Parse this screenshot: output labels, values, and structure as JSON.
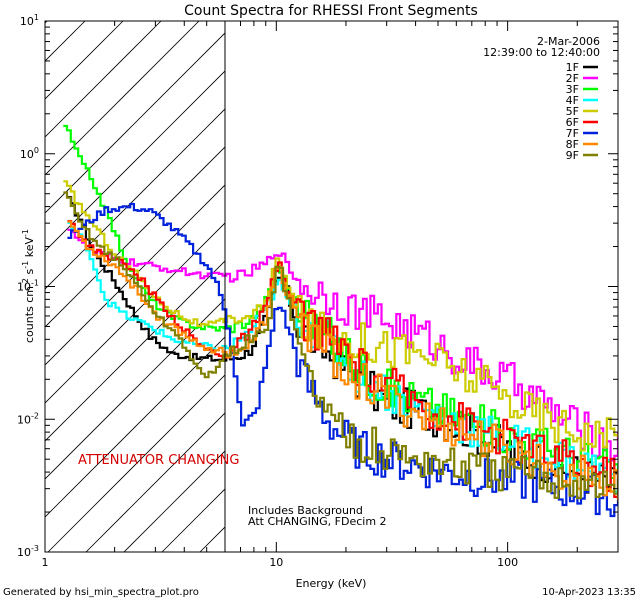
{
  "chart_data": {
    "type": "line",
    "title": "Count Spectra for RHESSI Front Segments",
    "xlabel": "Energy (keV)",
    "ylabel_parts": {
      "base": "counts cm",
      "exp1": "-2",
      "mid": " s",
      "exp2": "-1",
      "mid2": " keV",
      "exp3": "-1"
    },
    "xscale": "log",
    "yscale": "log",
    "xlim": [
      1,
      300
    ],
    "ylim": [
      0.001,
      10
    ],
    "x_ticks": [
      {
        "value": 1,
        "label": "1"
      },
      {
        "value": 10,
        "label": "10"
      },
      {
        "value": 100,
        "label": "100"
      }
    ],
    "y_ticks": [
      {
        "value": 10,
        "base": "10",
        "exp": "1"
      },
      {
        "value": 1,
        "base": "10",
        "exp": "0"
      },
      {
        "value": 0.1,
        "base": "10",
        "exp": "-1"
      },
      {
        "value": 0.01,
        "base": "10",
        "exp": "-2"
      },
      {
        "value": 0.001,
        "base": "10",
        "exp": "-3"
      }
    ],
    "date": "2-Mar-2006",
    "time_range": "12:39:00 to 12:40:00",
    "hatched_region": {
      "x_from": 1,
      "x_to": 6
    },
    "vertical_line_x": 6,
    "annotations": {
      "attenuator": "ATTENUATOR CHANGING",
      "background": "Includes Background",
      "att_status": "Att CHANGING, FDecim 2"
    },
    "series": [
      {
        "name": "1F",
        "color": "#000000",
        "anchors": [
          [
            1.25,
            0.45
          ],
          [
            1.4,
            0.32
          ],
          [
            1.6,
            0.18
          ],
          [
            1.9,
            0.12
          ],
          [
            2.3,
            0.07
          ],
          [
            2.8,
            0.042
          ],
          [
            3.5,
            0.031
          ],
          [
            4.5,
            0.029
          ],
          [
            6,
            0.028
          ],
          [
            7.5,
            0.032
          ],
          [
            9,
            0.06
          ],
          [
            10,
            0.12
          ],
          [
            11,
            0.09
          ],
          [
            12,
            0.055
          ],
          [
            14,
            0.04
          ],
          [
            17,
            0.03
          ],
          [
            22,
            0.02
          ],
          [
            30,
            0.013
          ],
          [
            45,
            0.011
          ],
          [
            70,
            0.008
          ],
          [
            110,
            0.0055
          ],
          [
            170,
            0.0043
          ],
          [
            250,
            0.0035
          ],
          [
            300,
            0.003
          ]
        ]
      },
      {
        "name": "2F",
        "color": "#ff00ff",
        "anchors": [
          [
            1.25,
            0.28
          ],
          [
            1.5,
            0.19
          ],
          [
            2,
            0.16
          ],
          [
            3,
            0.14
          ],
          [
            5,
            0.12
          ],
          [
            7,
            0.12
          ],
          [
            9,
            0.15
          ],
          [
            10,
            0.2
          ],
          [
            11,
            0.14
          ],
          [
            13,
            0.1
          ],
          [
            17,
            0.085
          ],
          [
            22,
            0.065
          ],
          [
            30,
            0.055
          ],
          [
            45,
            0.04
          ],
          [
            70,
            0.025
          ],
          [
            110,
            0.018
          ],
          [
            170,
            0.01
          ],
          [
            250,
            0.007
          ],
          [
            300,
            0.006
          ]
        ]
      },
      {
        "name": "3F",
        "color": "#00ff00",
        "anchors": [
          [
            1.2,
            1.65
          ],
          [
            1.4,
            0.9
          ],
          [
            1.6,
            0.6
          ],
          [
            1.9,
            0.3
          ],
          [
            2.3,
            0.13
          ],
          [
            2.8,
            0.08
          ],
          [
            3.5,
            0.058
          ],
          [
            4.5,
            0.05
          ],
          [
            6,
            0.048
          ],
          [
            7.5,
            0.055
          ],
          [
            9,
            0.08
          ],
          [
            10,
            0.15
          ],
          [
            11,
            0.1
          ],
          [
            13,
            0.06
          ],
          [
            17,
            0.04
          ],
          [
            22,
            0.025
          ],
          [
            30,
            0.017
          ],
          [
            45,
            0.013
          ],
          [
            70,
            0.0095
          ],
          [
            110,
            0.0072
          ],
          [
            170,
            0.0058
          ],
          [
            250,
            0.0045
          ],
          [
            300,
            0.0038
          ]
        ]
      },
      {
        "name": "4F",
        "color": "#00ffff",
        "anchors": [
          [
            1.25,
            0.3
          ],
          [
            1.5,
            0.2
          ],
          [
            1.8,
            0.08
          ],
          [
            2.2,
            0.06
          ],
          [
            2.8,
            0.05
          ],
          [
            3.5,
            0.04
          ],
          [
            4.5,
            0.036
          ],
          [
            6,
            0.034
          ],
          [
            7.5,
            0.045
          ],
          [
            9,
            0.07
          ],
          [
            10,
            0.11
          ],
          [
            11,
            0.08
          ],
          [
            13,
            0.055
          ],
          [
            17,
            0.038
          ],
          [
            22,
            0.022
          ],
          [
            30,
            0.016
          ],
          [
            45,
            0.011
          ],
          [
            70,
            0.0085
          ],
          [
            110,
            0.0065
          ],
          [
            170,
            0.005
          ],
          [
            250,
            0.0042
          ],
          [
            300,
            0.0035
          ]
        ]
      },
      {
        "name": "5F",
        "color": "#cccc00",
        "anchors": [
          [
            1.2,
            0.6
          ],
          [
            1.4,
            0.4
          ],
          [
            1.7,
            0.25
          ],
          [
            2,
            0.17
          ],
          [
            2.5,
            0.12
          ],
          [
            3,
            0.08
          ],
          [
            3.8,
            0.06
          ],
          [
            4.8,
            0.05
          ],
          [
            6,
            0.055
          ],
          [
            7.5,
            0.06
          ],
          [
            9,
            0.075
          ],
          [
            10,
            0.18
          ],
          [
            11,
            0.1
          ],
          [
            13,
            0.05
          ],
          [
            17,
            0.045
          ],
          [
            22,
            0.04
          ],
          [
            30,
            0.035
          ],
          [
            45,
            0.03
          ],
          [
            70,
            0.02
          ],
          [
            110,
            0.013
          ],
          [
            170,
            0.009
          ],
          [
            250,
            0.0075
          ],
          [
            300,
            0.007
          ]
        ]
      },
      {
        "name": "6F",
        "color": "#ff0000",
        "anchors": [
          [
            1.25,
            0.33
          ],
          [
            1.5,
            0.2
          ],
          [
            2,
            0.16
          ],
          [
            2.5,
            0.12
          ],
          [
            3,
            0.08
          ],
          [
            3.8,
            0.05
          ],
          [
            4.8,
            0.034
          ],
          [
            6,
            0.03
          ],
          [
            7.5,
            0.045
          ],
          [
            9,
            0.07
          ],
          [
            10,
            0.16
          ],
          [
            11,
            0.09
          ],
          [
            13,
            0.055
          ],
          [
            17,
            0.04
          ],
          [
            22,
            0.025
          ],
          [
            30,
            0.018
          ],
          [
            45,
            0.012
          ],
          [
            70,
            0.009
          ],
          [
            110,
            0.0065
          ],
          [
            170,
            0.005
          ],
          [
            250,
            0.004
          ],
          [
            300,
            0.0035
          ]
        ]
      },
      {
        "name": "7F",
        "color": "#0022dd",
        "anchors": [
          [
            1.25,
            0.24
          ],
          [
            1.5,
            0.3
          ],
          [
            1.8,
            0.38
          ],
          [
            2.3,
            0.4
          ],
          [
            2.8,
            0.37
          ],
          [
            3.3,
            0.3
          ],
          [
            4,
            0.22
          ],
          [
            5,
            0.14
          ],
          [
            5.5,
            0.1
          ],
          [
            6,
            0.06
          ],
          [
            6.5,
            0.024
          ],
          [
            7,
            0.0085
          ],
          [
            7.5,
            0.01
          ],
          [
            8,
            0.011
          ],
          [
            9,
            0.03
          ],
          [
            10,
            0.08
          ],
          [
            11,
            0.05
          ],
          [
            13,
            0.02
          ],
          [
            17,
            0.009
          ],
          [
            22,
            0.006
          ],
          [
            30,
            0.005
          ],
          [
            45,
            0.0042
          ],
          [
            70,
            0.0037
          ],
          [
            110,
            0.0034
          ],
          [
            170,
            0.003
          ],
          [
            250,
            0.0027
          ],
          [
            300,
            0.0022
          ]
        ]
      },
      {
        "name": "8F",
        "color": "#ff8800",
        "anchors": [
          [
            1.25,
            0.31
          ],
          [
            1.5,
            0.2
          ],
          [
            2,
            0.14
          ],
          [
            2.5,
            0.09
          ],
          [
            3,
            0.06
          ],
          [
            3.8,
            0.045
          ],
          [
            4.8,
            0.035
          ],
          [
            6,
            0.032
          ],
          [
            7.5,
            0.035
          ],
          [
            9,
            0.06
          ],
          [
            10,
            0.15
          ],
          [
            11,
            0.09
          ],
          [
            13,
            0.05
          ],
          [
            17,
            0.03
          ],
          [
            22,
            0.02
          ],
          [
            30,
            0.014
          ],
          [
            45,
            0.01
          ],
          [
            70,
            0.0075
          ],
          [
            110,
            0.0055
          ],
          [
            170,
            0.0042
          ],
          [
            250,
            0.0034
          ],
          [
            300,
            0.003
          ]
        ]
      },
      {
        "name": "9F",
        "color": "#808000",
        "anchors": [
          [
            1.2,
            0.5
          ],
          [
            1.4,
            0.3
          ],
          [
            1.7,
            0.2
          ],
          [
            2,
            0.16
          ],
          [
            2.5,
            0.1
          ],
          [
            3,
            0.06
          ],
          [
            3.8,
            0.04
          ],
          [
            4.8,
            0.02
          ],
          [
            6,
            0.03
          ],
          [
            7.5,
            0.04
          ],
          [
            9,
            0.045
          ],
          [
            10,
            0.17
          ],
          [
            11,
            0.08
          ],
          [
            13,
            0.025
          ],
          [
            17,
            0.01
          ],
          [
            22,
            0.007
          ],
          [
            30,
            0.0055
          ],
          [
            45,
            0.0048
          ],
          [
            70,
            0.0042
          ],
          [
            110,
            0.0038
          ],
          [
            170,
            0.0035
          ],
          [
            250,
            0.0032
          ],
          [
            300,
            0.003
          ]
        ]
      }
    ]
  },
  "footer": {
    "generated": "Generated by hsi_min_spectra_plot.pro",
    "timestamp": "10-Apr-2023 13:35"
  }
}
